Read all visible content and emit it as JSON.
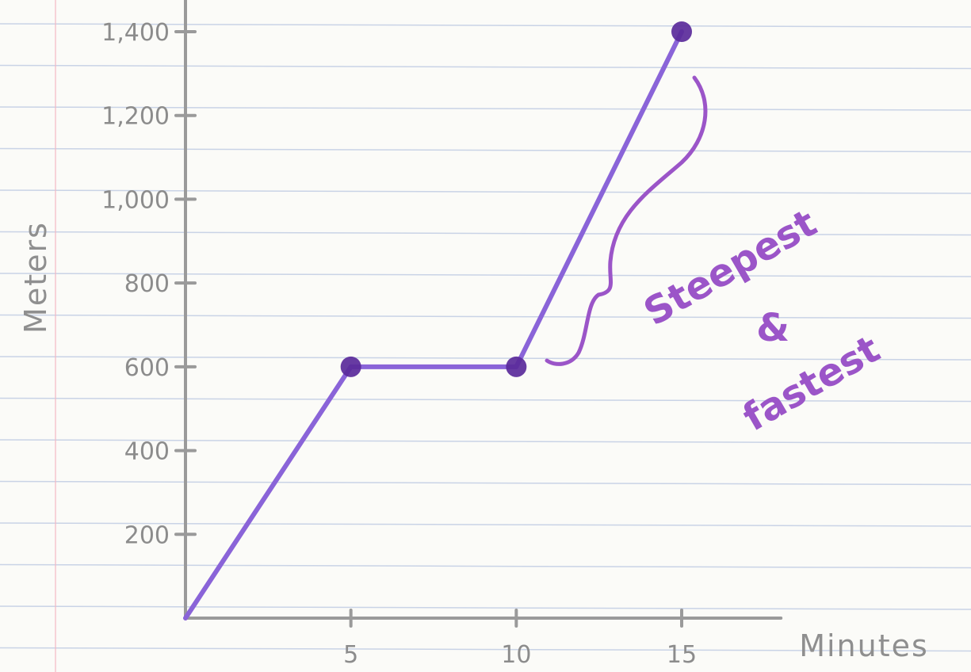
{
  "chart_data": {
    "type": "line",
    "x": [
      0,
      5,
      10,
      15
    ],
    "series": [
      {
        "values": [
          0,
          600,
          600,
          1400
        ]
      }
    ],
    "xticks": [
      "5",
      "10",
      "15"
    ],
    "yticks": [
      "200",
      "400",
      "600",
      "800",
      "1,000",
      "1,200",
      "1,400"
    ],
    "xlabel": "Minutes",
    "ylabel": "Meters",
    "xlim": [
      0,
      18
    ],
    "ylim": [
      0,
      1400
    ],
    "annotations": [
      "Steepest",
      "&",
      "fastest"
    ],
    "grid": true,
    "colors": {
      "line": "#8a64d8",
      "point": "#5a2a9a",
      "axis": "#9a9a9a",
      "annotation": "#9b55c8",
      "ruling": "#c9d3e6",
      "margin": "#f2b8c4"
    }
  }
}
